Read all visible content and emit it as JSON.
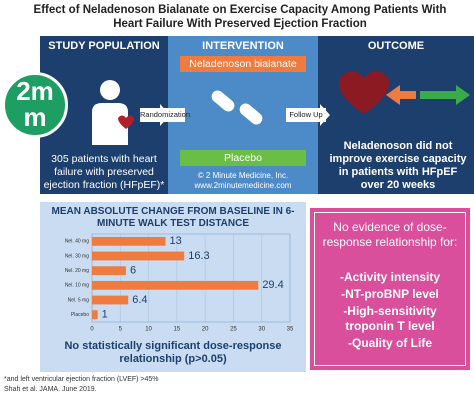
{
  "header": {
    "title": "Effect of Neladenoson Bialanate on Exercise Capacity Among Patients With Heart Failure With Preserved Ejection Fraction"
  },
  "logo": {
    "top": "2m",
    "bottom": "m"
  },
  "study_population": {
    "heading": "STUDY POPULATION",
    "text": "305 patients with heart failure with preserved ejection fraction (HFpEF)*"
  },
  "intervention": {
    "heading": "INTERVENTION",
    "drug": "Neladenoson bialanate",
    "placebo": "Placebo",
    "randomization": "Randomization",
    "follow_up": "Follow Up",
    "copyright": "© 2 Minute Medicine, Inc.",
    "url": "www.2minutemedicine.com"
  },
  "outcome": {
    "heading": "OUTCOME",
    "text": "Neladenoson did not improve exercise capacity in patients with HFpEF over 20 weeks"
  },
  "chart": {
    "type": "bar",
    "title": "MEAN ABSOLUTE CHANGE FROM BASELINE IN 6-MINUTE WALK TEST DISTANCE",
    "categories": [
      "Nel. 40 mg",
      "Nel. 30 mg",
      "Nel. 20 mg",
      "Nel. 10 mg",
      "Nel. 5 mg",
      "Placebo"
    ],
    "values": [
      13,
      16.3,
      6,
      29.4,
      6.4,
      1
    ],
    "color": "#f07b3f",
    "xlim": [
      0,
      35
    ],
    "xticks": [
      0,
      5,
      10,
      15,
      20,
      25,
      30,
      35
    ],
    "grid": true,
    "note": "No statistically significant dose-response relationship (p>0.05)"
  },
  "dose_response": {
    "heading": "No evidence of dose-response relationship for:",
    "items": [
      "-Activity intensity",
      "-NT-proBNP level",
      "-High-sensitivity troponin T level",
      "-Quality of Life"
    ]
  },
  "footnote": {
    "lines": [
      "*and left ventricular ejection fraction (LVEF) >45%",
      "Shah et al. JAMA. June 2019."
    ]
  }
}
